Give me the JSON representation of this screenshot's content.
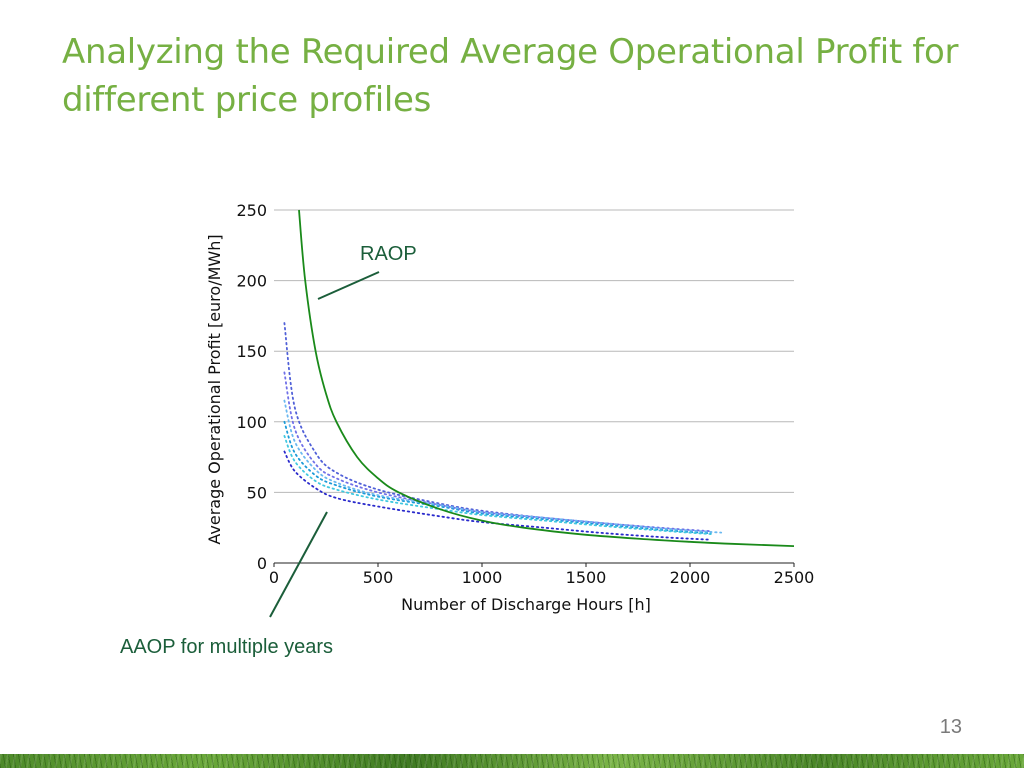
{
  "slide": {
    "title": "Analyzing the Required Average Operational Profit for different price profiles",
    "page_number": "13"
  },
  "annotations": {
    "raop": "RAOP",
    "aaop": "AAOP for multiple years"
  },
  "colors": {
    "title": "#76b043",
    "raop_line": "#1a8a1a",
    "aaop_series": [
      "#2a2acc",
      "#5060d8",
      "#1a9ad8",
      "#40c8e0",
      "#7070e8",
      "#6ab8f0"
    ]
  },
  "chart_data": {
    "type": "line",
    "title": "",
    "xlabel": "Number of Discharge Hours [h]",
    "ylabel": "Average Operational Profit [euro/MWh]",
    "xlim": [
      0,
      2500
    ],
    "ylim": [
      0,
      250
    ],
    "xticks": [
      "0",
      "500",
      "1000",
      "1500",
      "2000",
      "2500"
    ],
    "yticks": [
      "0",
      "50",
      "100",
      "150",
      "200",
      "250"
    ],
    "grid": "horizontal",
    "legend": "none",
    "series": [
      {
        "style": "solid",
        "x": [
          120,
          150,
          200,
          250,
          300,
          400,
          500,
          600,
          800,
          1000,
          1200,
          1500,
          1800,
          2000,
          2200,
          2500
        ],
        "y": [
          250,
          200,
          150,
          120,
          100,
          75,
          60,
          50,
          38,
          30,
          25,
          20,
          16.7,
          15,
          13.6,
          12
        ]
      },
      {
        "style": "dotted",
        "x": [
          50,
          100,
          200,
          300,
          500,
          800,
          1000,
          1300,
          1600,
          1900,
          2100
        ],
        "y": [
          79,
          65,
          53,
          46,
          40,
          33,
          29,
          25,
          21,
          18,
          16.5
        ]
      },
      {
        "style": "dotted",
        "x": [
          50,
          100,
          200,
          300,
          500,
          800,
          1000,
          1300,
          1600,
          1900,
          2100
        ],
        "y": [
          170,
          110,
          78,
          64,
          52,
          42,
          37,
          32,
          28,
          24,
          22
        ]
      },
      {
        "style": "dotted",
        "x": [
          50,
          100,
          200,
          300,
          500,
          800,
          1000,
          1300,
          1600,
          1900,
          2100
        ],
        "y": [
          100,
          78,
          62,
          55,
          47,
          40,
          35,
          31,
          27,
          23,
          21
        ]
      },
      {
        "style": "dotted",
        "x": [
          50,
          100,
          200,
          300,
          500,
          800,
          1000,
          1300,
          1600,
          1900,
          2100
        ],
        "y": [
          90,
          72,
          58,
          52,
          45,
          38,
          34,
          30,
          26,
          22.5,
          20.5
        ]
      },
      {
        "style": "dotted",
        "x": [
          50,
          100,
          200,
          300,
          500,
          800,
          1000,
          1300,
          1600,
          1900,
          2100
        ],
        "y": [
          135,
          95,
          70,
          60,
          50,
          41,
          36,
          32,
          28,
          24.5,
          22.5
        ]
      },
      {
        "style": "dotted",
        "x": [
          50,
          100,
          200,
          300,
          500,
          800,
          1000,
          1300,
          1600,
          1900,
          2150
        ],
        "y": [
          115,
          86,
          66,
          57,
          48,
          41,
          36,
          32,
          28,
          24,
          21.5
        ]
      }
    ]
  }
}
